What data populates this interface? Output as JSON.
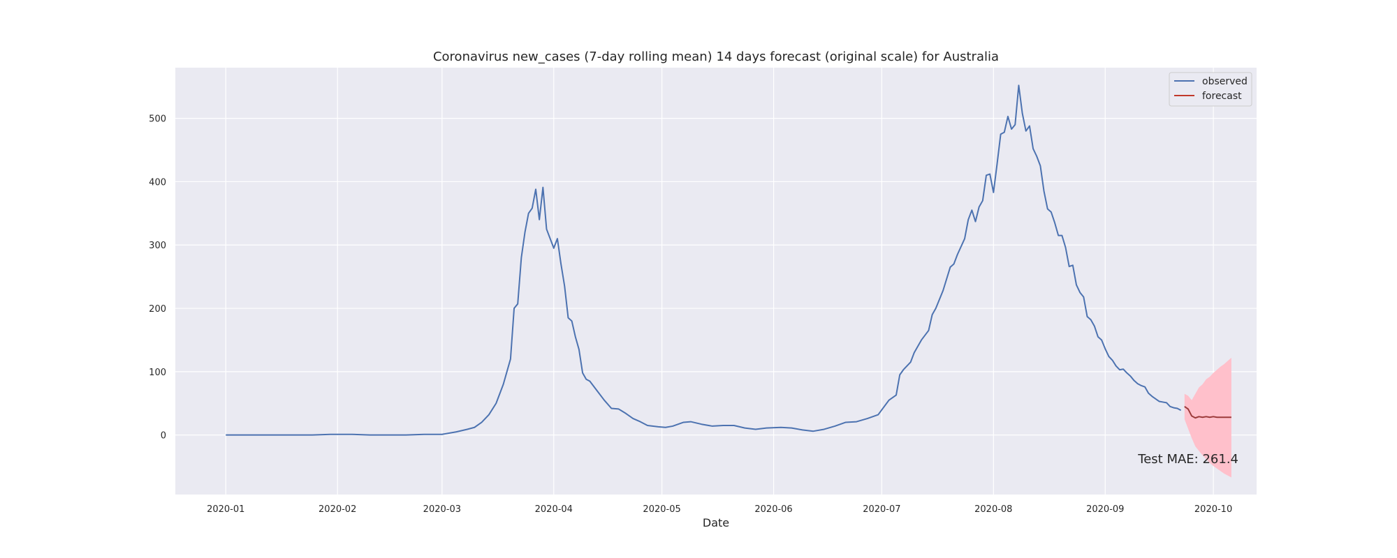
{
  "chart_data": {
    "type": "line",
    "title": "Coronavirus new_cases (7-day rolling mean) 14 days forecast (original scale) for Australia",
    "xlabel": "Date",
    "ylabel": "",
    "x_range": [
      "2019-12-18",
      "2020-10-13"
    ],
    "ylim": [
      -94,
      580
    ],
    "x_ticks": [
      "2020-01",
      "2020-02",
      "2020-03",
      "2020-04",
      "2020-05",
      "2020-06",
      "2020-07",
      "2020-08",
      "2020-09",
      "2020-10"
    ],
    "y_ticks": [
      0,
      100,
      200,
      300,
      400,
      500
    ],
    "grid": true,
    "legend_position": "top-right",
    "annotation": "Test MAE: 261.4",
    "colors": {
      "background": "#eaeaf2",
      "grid": "#ffffff",
      "observed": "#4c72b0",
      "forecast": "#c0392b",
      "confidence_band": "#ffc0cb"
    },
    "series": [
      {
        "name": "observed",
        "points": [
          [
            "2020-01-01",
            0
          ],
          [
            "2020-01-10",
            0
          ],
          [
            "2020-01-20",
            0
          ],
          [
            "2020-01-25",
            0
          ],
          [
            "2020-01-30",
            1
          ],
          [
            "2020-02-05",
            1
          ],
          [
            "2020-02-10",
            0
          ],
          [
            "2020-02-20",
            0
          ],
          [
            "2020-02-25",
            1
          ],
          [
            "2020-03-01",
            1
          ],
          [
            "2020-03-05",
            5
          ],
          [
            "2020-03-08",
            9
          ],
          [
            "2020-03-10",
            12
          ],
          [
            "2020-03-12",
            20
          ],
          [
            "2020-03-14",
            32
          ],
          [
            "2020-03-16",
            50
          ],
          [
            "2020-03-18",
            80
          ],
          [
            "2020-03-20",
            120
          ],
          [
            "2020-03-21",
            200
          ],
          [
            "2020-03-22",
            207
          ],
          [
            "2020-03-23",
            280
          ],
          [
            "2020-03-24",
            320
          ],
          [
            "2020-03-25",
            350
          ],
          [
            "2020-03-26",
            358
          ],
          [
            "2020-03-27",
            388
          ],
          [
            "2020-03-28",
            340
          ],
          [
            "2020-03-29",
            391
          ],
          [
            "2020-03-30",
            325
          ],
          [
            "2020-03-31",
            310
          ],
          [
            "2020-04-01",
            295
          ],
          [
            "2020-04-02",
            310
          ],
          [
            "2020-04-03",
            270
          ],
          [
            "2020-04-04",
            235
          ],
          [
            "2020-04-05",
            185
          ],
          [
            "2020-04-06",
            180
          ],
          [
            "2020-04-07",
            155
          ],
          [
            "2020-04-08",
            135
          ],
          [
            "2020-04-09",
            98
          ],
          [
            "2020-04-10",
            88
          ],
          [
            "2020-04-11",
            85
          ],
          [
            "2020-04-13",
            70
          ],
          [
            "2020-04-15",
            55
          ],
          [
            "2020-04-17",
            42
          ],
          [
            "2020-04-19",
            41
          ],
          [
            "2020-04-21",
            34
          ],
          [
            "2020-04-23",
            26
          ],
          [
            "2020-04-25",
            21
          ],
          [
            "2020-04-27",
            15
          ],
          [
            "2020-04-30",
            13
          ],
          [
            "2020-05-02",
            12
          ],
          [
            "2020-05-04",
            14
          ],
          [
            "2020-05-07",
            20
          ],
          [
            "2020-05-09",
            21
          ],
          [
            "2020-05-12",
            17
          ],
          [
            "2020-05-15",
            14
          ],
          [
            "2020-05-18",
            15
          ],
          [
            "2020-05-21",
            15
          ],
          [
            "2020-05-24",
            11
          ],
          [
            "2020-05-27",
            9
          ],
          [
            "2020-05-30",
            11
          ],
          [
            "2020-06-03",
            12
          ],
          [
            "2020-06-06",
            11
          ],
          [
            "2020-06-09",
            8
          ],
          [
            "2020-06-12",
            6
          ],
          [
            "2020-06-15",
            9
          ],
          [
            "2020-06-18",
            14
          ],
          [
            "2020-06-21",
            20
          ],
          [
            "2020-06-24",
            21
          ],
          [
            "2020-06-27",
            26
          ],
          [
            "2020-06-30",
            32
          ],
          [
            "2020-07-03",
            55
          ],
          [
            "2020-07-05",
            63
          ],
          [
            "2020-07-06",
            95
          ],
          [
            "2020-07-07",
            103
          ],
          [
            "2020-07-09",
            115
          ],
          [
            "2020-07-10",
            130
          ],
          [
            "2020-07-12",
            150
          ],
          [
            "2020-07-14",
            165
          ],
          [
            "2020-07-15",
            190
          ],
          [
            "2020-07-16",
            200
          ],
          [
            "2020-07-18",
            228
          ],
          [
            "2020-07-20",
            265
          ],
          [
            "2020-07-21",
            270
          ],
          [
            "2020-07-22",
            285
          ],
          [
            "2020-07-24",
            310
          ],
          [
            "2020-07-25",
            340
          ],
          [
            "2020-07-26",
            355
          ],
          [
            "2020-07-27",
            337
          ],
          [
            "2020-07-28",
            360
          ],
          [
            "2020-07-29",
            370
          ],
          [
            "2020-07-30",
            410
          ],
          [
            "2020-07-31",
            412
          ],
          [
            "2020-08-01",
            383
          ],
          [
            "2020-08-02",
            428
          ],
          [
            "2020-08-03",
            475
          ],
          [
            "2020-08-04",
            478
          ],
          [
            "2020-08-05",
            503
          ],
          [
            "2020-08-06",
            483
          ],
          [
            "2020-08-07",
            490
          ],
          [
            "2020-08-08",
            552
          ],
          [
            "2020-08-09",
            508
          ],
          [
            "2020-08-10",
            480
          ],
          [
            "2020-08-11",
            488
          ],
          [
            "2020-08-12",
            452
          ],
          [
            "2020-08-13",
            440
          ],
          [
            "2020-08-14",
            425
          ],
          [
            "2020-08-15",
            385
          ],
          [
            "2020-08-16",
            357
          ],
          [
            "2020-08-17",
            352
          ],
          [
            "2020-08-18",
            335
          ],
          [
            "2020-08-19",
            315
          ],
          [
            "2020-08-20",
            315
          ],
          [
            "2020-08-21",
            296
          ],
          [
            "2020-08-22",
            266
          ],
          [
            "2020-08-23",
            268
          ],
          [
            "2020-08-24",
            237
          ],
          [
            "2020-08-25",
            225
          ],
          [
            "2020-08-26",
            218
          ],
          [
            "2020-08-27",
            187
          ],
          [
            "2020-08-28",
            182
          ],
          [
            "2020-08-29",
            172
          ],
          [
            "2020-08-30",
            155
          ],
          [
            "2020-08-31",
            150
          ],
          [
            "2020-09-01",
            136
          ],
          [
            "2020-09-02",
            124
          ],
          [
            "2020-09-03",
            118
          ],
          [
            "2020-09-04",
            109
          ],
          [
            "2020-09-05",
            103
          ],
          [
            "2020-09-06",
            104
          ],
          [
            "2020-09-07",
            98
          ],
          [
            "2020-09-08",
            93
          ],
          [
            "2020-09-09",
            86
          ],
          [
            "2020-09-10",
            81
          ],
          [
            "2020-09-11",
            78
          ],
          [
            "2020-09-12",
            76
          ],
          [
            "2020-09-13",
            66
          ],
          [
            "2020-09-14",
            61
          ],
          [
            "2020-09-15",
            57
          ],
          [
            "2020-09-16",
            53
          ],
          [
            "2020-09-17",
            52
          ],
          [
            "2020-09-18",
            51
          ],
          [
            "2020-09-19",
            45
          ],
          [
            "2020-09-20",
            43
          ],
          [
            "2020-09-21",
            42
          ],
          [
            "2020-09-22",
            39
          ]
        ]
      },
      {
        "name": "forecast",
        "points": [
          [
            "2020-09-23",
            45
          ],
          [
            "2020-09-24",
            41
          ],
          [
            "2020-09-25",
            30
          ],
          [
            "2020-09-26",
            27
          ],
          [
            "2020-09-27",
            29
          ],
          [
            "2020-09-28",
            28
          ],
          [
            "2020-09-29",
            29
          ],
          [
            "2020-09-30",
            28
          ],
          [
            "2020-10-01",
            29
          ],
          [
            "2020-10-02",
            28
          ],
          [
            "2020-10-03",
            28
          ],
          [
            "2020-10-04",
            28
          ],
          [
            "2020-10-05",
            28
          ],
          [
            "2020-10-06",
            28
          ]
        ],
        "band_upper": [
          65,
          62,
          55,
          65,
          75,
          80,
          88,
          92,
          98,
          103,
          108,
          112,
          117,
          122
        ],
        "band_lower": [
          25,
          10,
          -5,
          -18,
          -25,
          -32,
          -38,
          -44,
          -49,
          -53,
          -57,
          -61,
          -64,
          -67
        ]
      }
    ]
  }
}
